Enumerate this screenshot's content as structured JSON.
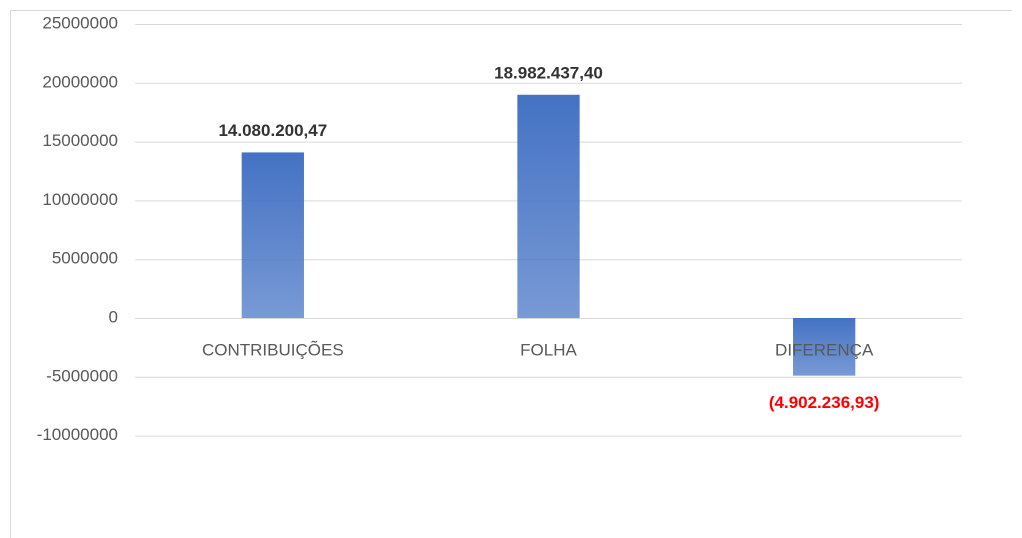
{
  "chart_data": {
    "type": "bar",
    "categories": [
      "CONTRIBUIÇÕES",
      "FOLHA",
      "DIFERENÇA"
    ],
    "values": [
      14080200.47,
      18982437.4,
      -4902236.93
    ],
    "value_labels": [
      "14.080.200,47",
      "18.982.437,40",
      "(4.902.236,93)"
    ],
    "value_label_colors": [
      "#333333",
      "#333333",
      "#ff0000"
    ],
    "color": "#4472c4",
    "ylim": [
      -10000000,
      25000000
    ],
    "yticks": [
      25000000,
      20000000,
      15000000,
      10000000,
      5000000,
      0,
      -5000000,
      -10000000
    ],
    "grid": true
  }
}
